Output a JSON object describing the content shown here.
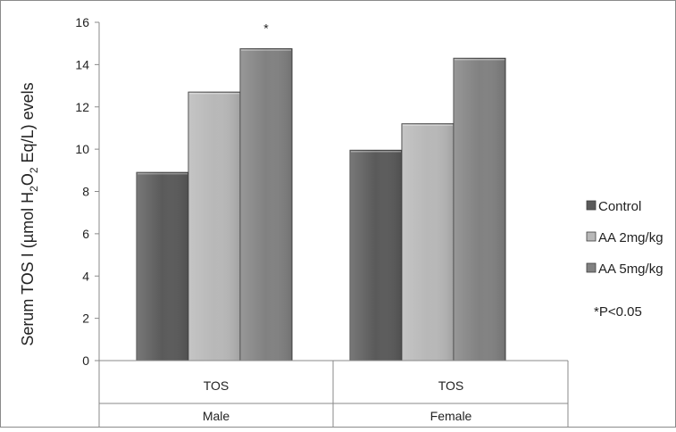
{
  "chart_data": {
    "type": "bar",
    "ylabel_parts": {
      "prefix": "Serum TOS I (µmol H",
      "sub1": "2",
      "mid": "O",
      "sub2": "2",
      "suffix": " Eq/L) evels"
    },
    "ylim": [
      0,
      16
    ],
    "yticks": [
      "0",
      "2",
      "4",
      "6",
      "8",
      "10",
      "12",
      "14",
      "16"
    ],
    "grid": false,
    "legend_position": "right",
    "groups": [
      {
        "category": "TOS",
        "group": "Male"
      },
      {
        "category": "TOS",
        "group": "Female"
      }
    ],
    "series": [
      {
        "name": "Control",
        "color": "#5a5a5a",
        "values": [
          8.9,
          9.95
        ]
      },
      {
        "name": "AA 2mg/kg",
        "color": "#b8b8b8",
        "values": [
          12.7,
          11.2
        ]
      },
      {
        "name": "AA 5mg/kg",
        "color": "#818181",
        "values": [
          14.75,
          14.3
        ]
      }
    ],
    "annotations": [
      {
        "text": "*",
        "series": 2,
        "group": 0
      }
    ],
    "note": "*P<0.05"
  }
}
